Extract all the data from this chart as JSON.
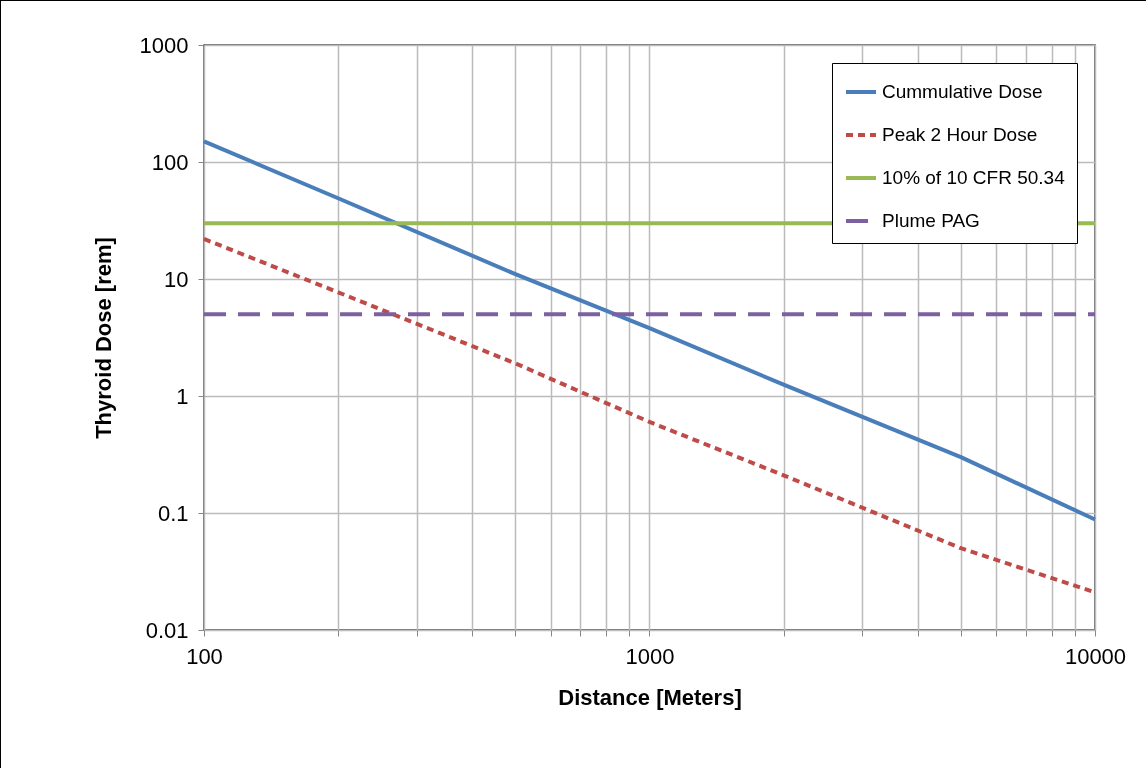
{
  "chart_data": {
    "type": "line",
    "xlabel": "Distance [Meters]",
    "ylabel": "Thyroid Dose [rem]",
    "log": "xy",
    "grid": true,
    "legend": "top right",
    "marker": "none",
    "xlim": [
      100,
      10000
    ],
    "ylim": [
      0.01,
      1000
    ],
    "xticks": [
      100,
      {
        "value": 200,
        "label": null
      },
      {
        "value": 300,
        "label": null
      },
      {
        "value": 400,
        "label": null
      },
      {
        "value": 500,
        "label": null
      },
      {
        "value": 600,
        "label": null
      },
      {
        "value": 700,
        "label": null
      },
      {
        "value": 800,
        "label": null
      },
      {
        "value": 900,
        "label": null
      },
      1000,
      {
        "value": 2000,
        "label": null
      },
      {
        "value": 3000,
        "label": null
      },
      {
        "value": 4000,
        "label": null
      },
      {
        "value": 5000,
        "label": null
      },
      {
        "value": 6000,
        "label": null
      },
      {
        "value": 7000,
        "label": null
      },
      {
        "value": 8000,
        "label": null
      },
      {
        "value": 9000,
        "label": null
      },
      10000
    ],
    "yticks": [
      0.01,
      0.1,
      1,
      10,
      100,
      1000
    ],
    "series": [
      {
        "name": "Cummulative Dose",
        "color": "#4a7ebb",
        "line_style": "solid",
        "x": [
          100,
          200,
          500,
          1000,
          2000,
          5000,
          10000
        ],
        "values": [
          150,
          49,
          11,
          3.8,
          1.25,
          0.3,
          0.088
        ]
      },
      {
        "name": "Peak 2 Hour Dose",
        "color": "#be4b48",
        "line_style": "dashed",
        "x": [
          100,
          200,
          500,
          1000,
          2000,
          5000,
          10000
        ],
        "values": [
          22,
          7.7,
          1.9,
          0.6,
          0.21,
          0.05,
          0.021
        ]
      },
      {
        "name": "10% of 10 CFR 50.34",
        "color": "#98b954",
        "line_style": "solid",
        "x": [
          100,
          10000
        ],
        "values": [
          30,
          30
        ]
      },
      {
        "name": "Plume PAG",
        "color": "#7d60a0",
        "line_style": "dashed",
        "x": [
          100,
          10000
        ],
        "values": [
          5,
          5
        ]
      }
    ]
  }
}
